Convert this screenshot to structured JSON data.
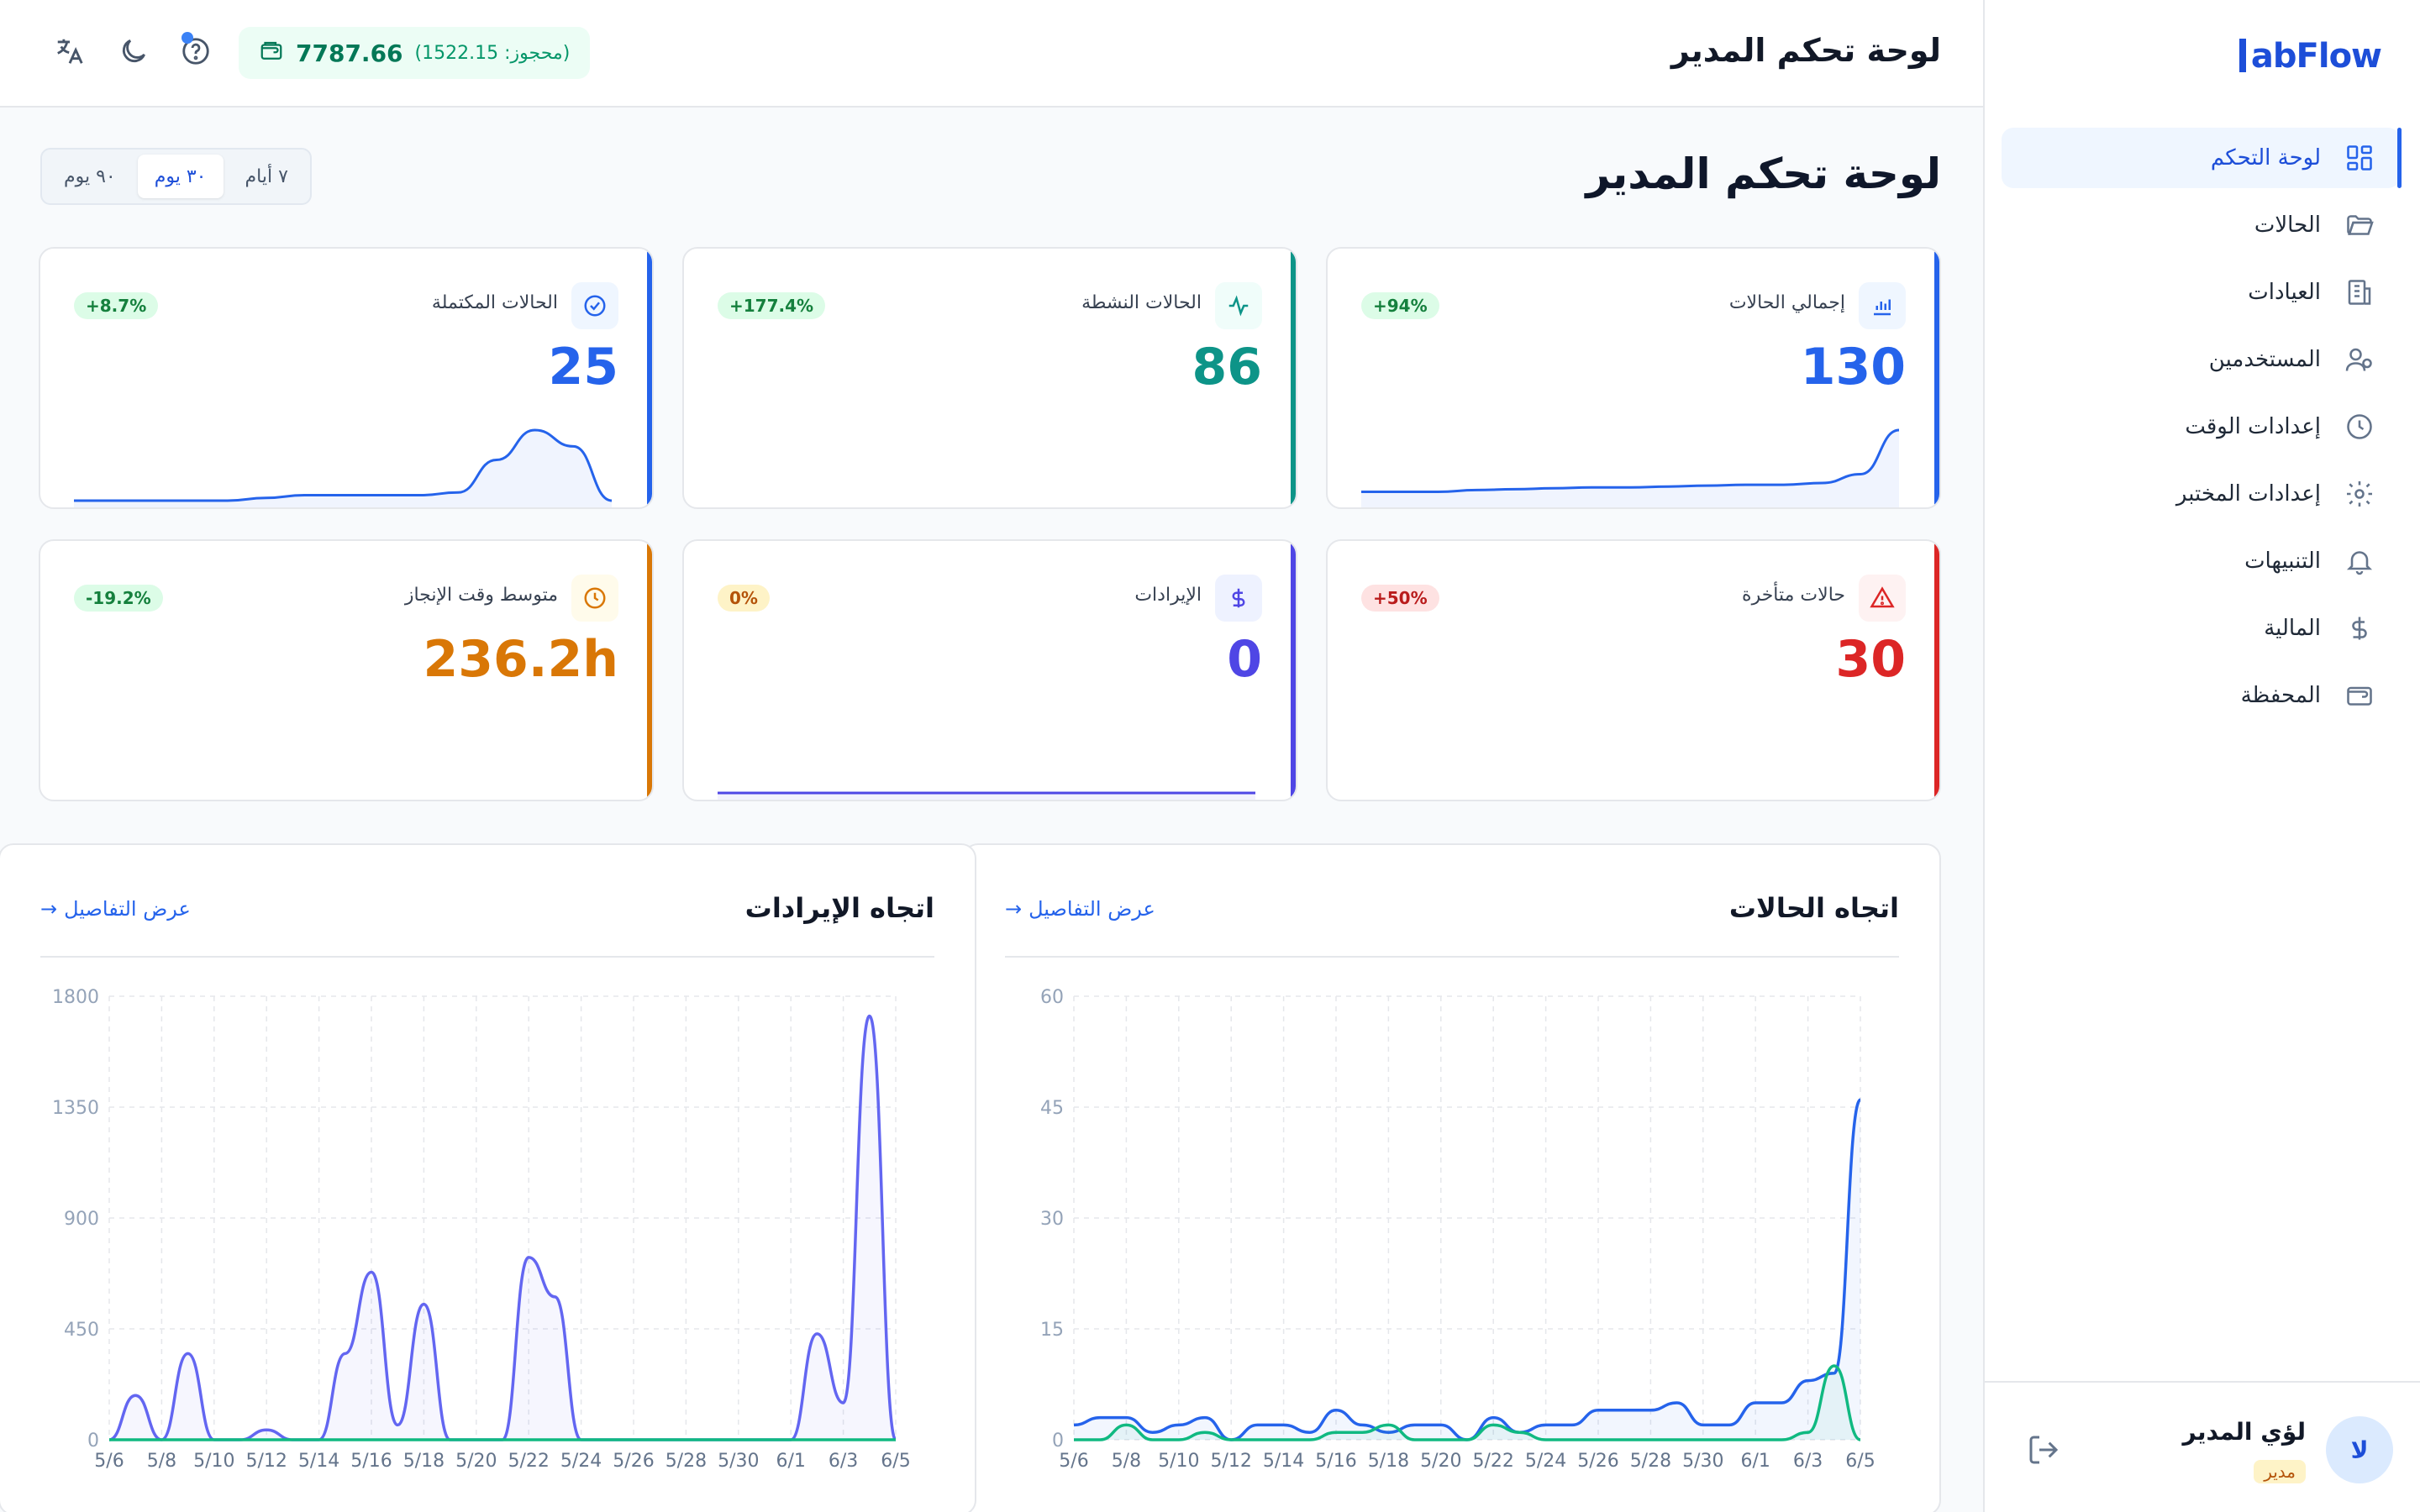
{
  "app": {
    "logo_text": "abFlow",
    "logo_initial": "L"
  },
  "header": {
    "title": "لوحة تحكم المدير",
    "wallet_amount": "7787.66",
    "wallet_reserved": "(محجوز: 1522.15)"
  },
  "page": {
    "title": "لوحة تحكم المدير"
  },
  "range": {
    "options": [
      "٧ أيام",
      "٣٠ يوم",
      "٩٠ يوم"
    ],
    "selected": "٣٠ يوم"
  },
  "sidebar": {
    "items": [
      {
        "label": "لوحة التحكم",
        "icon": "dashboard-icon"
      },
      {
        "label": "الحالات",
        "icon": "folder-icon"
      },
      {
        "label": "العيادات",
        "icon": "building-icon"
      },
      {
        "label": "المستخدمين",
        "icon": "users-icon"
      },
      {
        "label": "إعدادات الوقت",
        "icon": "clock-icon"
      },
      {
        "label": "إعدادات المختبر",
        "icon": "gear-icon"
      },
      {
        "label": "التنبيهات",
        "icon": "bell-icon"
      },
      {
        "label": "المالية",
        "icon": "dollar-icon"
      },
      {
        "label": "المحفظة",
        "icon": "wallet-icon"
      }
    ],
    "active_index": 0
  },
  "user": {
    "name": "لؤي المدير",
    "role": "مدير",
    "initial": "لا"
  },
  "stats": [
    {
      "label": "إجمالي الحالات",
      "value": "130",
      "badge": "+94%",
      "icon": "bar-chart-icon",
      "color": "#2563eb",
      "badge_bg": "#dcfce7",
      "badge_color": "#15803d",
      "icon_bg": "#eff6ff",
      "spark": [
        1,
        1,
        1,
        1.2,
        1.3,
        1.4,
        1.5,
        1.5,
        1.6,
        1.7,
        1.8,
        1.8,
        2,
        3,
        8
      ]
    },
    {
      "label": "الحالات النشطة",
      "value": "86",
      "badge": "+177.4%",
      "icon": "activity-icon",
      "color": "#0d9488",
      "badge_bg": "#dcfce7",
      "badge_color": "#15803d",
      "icon_bg": "#f0fdfa",
      "spark": []
    },
    {
      "label": "الحالات المكتملة",
      "value": "25",
      "badge": "+8.7%",
      "icon": "check-circle-icon",
      "color": "#2563eb",
      "badge_bg": "#dcfce7",
      "badge_color": "#15803d",
      "icon_bg": "#eff6ff",
      "spark": [
        0,
        0,
        0,
        0,
        0,
        0.1,
        0.2,
        0.2,
        0.2,
        0.2,
        0.3,
        1.5,
        2.6,
        2,
        0
      ]
    },
    {
      "label": "حالات متأخرة",
      "value": "30",
      "badge": "+50%",
      "icon": "alert-triangle-icon",
      "color": "#dc2626",
      "badge_bg": "#fee2e2",
      "badge_color": "#b91c1c",
      "icon_bg": "#fef2f2",
      "spark": []
    },
    {
      "label": "الإيرادات",
      "value": "0",
      "badge": "0%",
      "icon": "dollar-icon",
      "color": "#4f46e5",
      "badge_bg": "#fef3c7",
      "badge_color": "#b45309",
      "icon_bg": "#eef2ff",
      "spark": [
        0,
        0,
        0,
        0,
        0,
        0,
        0,
        0,
        0,
        0,
        0,
        0,
        0,
        0,
        0
      ]
    },
    {
      "label": "متوسط وقت الإنجاز",
      "value": "236.2h",
      "badge": "-19.2%",
      "icon": "clock-icon",
      "color": "#d97706",
      "badge_bg": "#dcfce7",
      "badge_color": "#15803d",
      "icon_bg": "#fffbeb",
      "spark": []
    }
  ],
  "charts_text": {
    "details_link": "عرض التفاصيل"
  },
  "chart_data": [
    {
      "type": "line",
      "title": "اتجاه الحالات",
      "x": [
        "5/6",
        "5/7",
        "5/8",
        "5/9",
        "5/10",
        "5/11",
        "5/12",
        "5/13",
        "5/14",
        "5/15",
        "5/16",
        "5/17",
        "5/18",
        "5/19",
        "5/20",
        "5/21",
        "5/22",
        "5/23",
        "5/24",
        "5/25",
        "5/26",
        "5/27",
        "5/28",
        "5/29",
        "5/30",
        "5/31",
        "6/1",
        "6/2",
        "6/3",
        "6/4",
        "6/5"
      ],
      "x_ticks": [
        "5/6",
        "5/8",
        "5/10",
        "5/12",
        "5/14",
        "5/16",
        "5/18",
        "5/20",
        "5/22",
        "5/24",
        "5/26",
        "5/28",
        "5/30",
        "6/1",
        "6/3",
        "6/5"
      ],
      "y_ticks": [
        0,
        15,
        30,
        45,
        60
      ],
      "ylim": [
        0,
        60
      ],
      "series": [
        {
          "color": "#2563eb",
          "values": [
            2,
            3,
            3,
            1,
            2,
            3,
            0,
            2,
            2,
            1,
            4,
            2,
            1,
            2,
            2,
            0,
            3,
            1,
            2,
            2,
            4,
            4,
            4,
            5,
            2,
            2,
            5,
            5,
            8,
            9,
            46
          ]
        },
        {
          "color": "#10b981",
          "values": [
            0,
            0,
            2,
            0,
            0,
            1,
            0,
            0,
            0,
            0,
            1,
            1,
            2,
            0,
            0,
            0,
            2,
            1,
            0,
            0,
            0,
            0,
            0,
            0,
            0,
            0,
            0,
            0,
            1,
            10,
            0
          ]
        }
      ]
    },
    {
      "type": "line",
      "title": "اتجاه الإيرادات",
      "x": [
        "5/6",
        "5/7",
        "5/8",
        "5/9",
        "5/10",
        "5/11",
        "5/12",
        "5/13",
        "5/14",
        "5/15",
        "5/16",
        "5/17",
        "5/18",
        "5/19",
        "5/20",
        "5/21",
        "5/22",
        "5/23",
        "5/24",
        "5/25",
        "5/26",
        "5/27",
        "5/28",
        "5/29",
        "5/30",
        "5/31",
        "6/1",
        "6/2",
        "6/3",
        "6/4",
        "6/5"
      ],
      "x_ticks": [
        "5/6",
        "5/8",
        "5/10",
        "5/12",
        "5/14",
        "5/16",
        "5/18",
        "5/20",
        "5/22",
        "5/24",
        "5/26",
        "5/28",
        "5/30",
        "6/1",
        "6/3",
        "6/5"
      ],
      "y_ticks": [
        0,
        450,
        900,
        1350,
        1800
      ],
      "ylim": [
        0,
        1800
      ],
      "series": [
        {
          "color": "#6366f1",
          "values": [
            0,
            180,
            0,
            350,
            0,
            0,
            40,
            0,
            0,
            350,
            680,
            60,
            550,
            0,
            0,
            0,
            740,
            580,
            0,
            0,
            0,
            0,
            0,
            0,
            0,
            0,
            0,
            430,
            150,
            1720,
            0
          ]
        },
        {
          "color": "#10b981",
          "values": [
            0,
            0,
            0,
            0,
            0,
            0,
            0,
            0,
            0,
            0,
            0,
            0,
            0,
            0,
            0,
            0,
            0,
            0,
            0,
            0,
            0,
            0,
            0,
            0,
            0,
            0,
            0,
            0,
            0,
            0,
            0
          ]
        }
      ]
    }
  ]
}
